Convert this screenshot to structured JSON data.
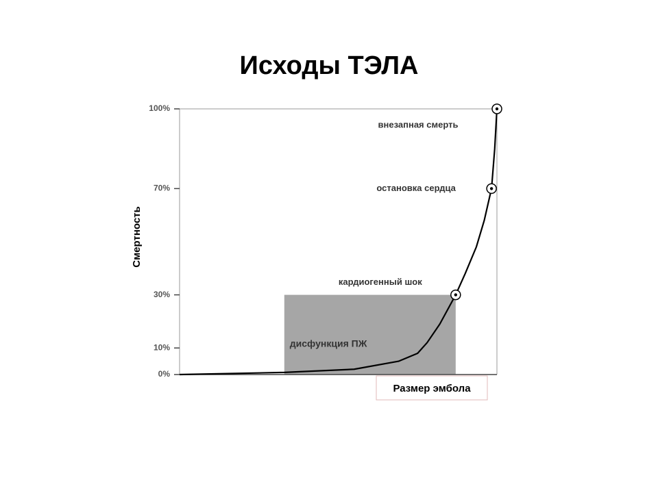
{
  "chart_data": {
    "type": "line",
    "title": "Исходы ТЭЛА",
    "xlabel": "Размер эмбола",
    "ylabel": "Смертность",
    "x": [
      0,
      33,
      55,
      69,
      75,
      78,
      82,
      87,
      90,
      93.5,
      96,
      98.3,
      99.3,
      100
    ],
    "series": [
      {
        "color": "#000000",
        "values": [
          0,
          0.8,
          2,
          5,
          8,
          12,
          19,
          30,
          38,
          48,
          58,
          70,
          85,
          100
        ]
      }
    ],
    "xlim": [
      0,
      100
    ],
    "ylim": [
      0,
      100
    ],
    "yticks": [
      {
        "value": 0,
        "label": "0%"
      },
      {
        "value": 10,
        "label": "10%"
      },
      {
        "value": 30,
        "label": "30%"
      },
      {
        "value": 70,
        "label": "70%"
      },
      {
        "value": 100,
        "label": "100%"
      }
    ],
    "annotations": [
      {
        "text": "внезапная смерть",
        "x": 100,
        "y": 100
      },
      {
        "text": "остановка сердца",
        "x": 98.3,
        "y": 70
      },
      {
        "text": "кардиогенный шок",
        "x": 87,
        "y": 30
      }
    ],
    "regions": [
      {
        "label": "дисфункция ПЖ",
        "x": [
          33,
          87
        ],
        "y": [
          0,
          30
        ],
        "color": "#a6a6a6"
      }
    ]
  }
}
